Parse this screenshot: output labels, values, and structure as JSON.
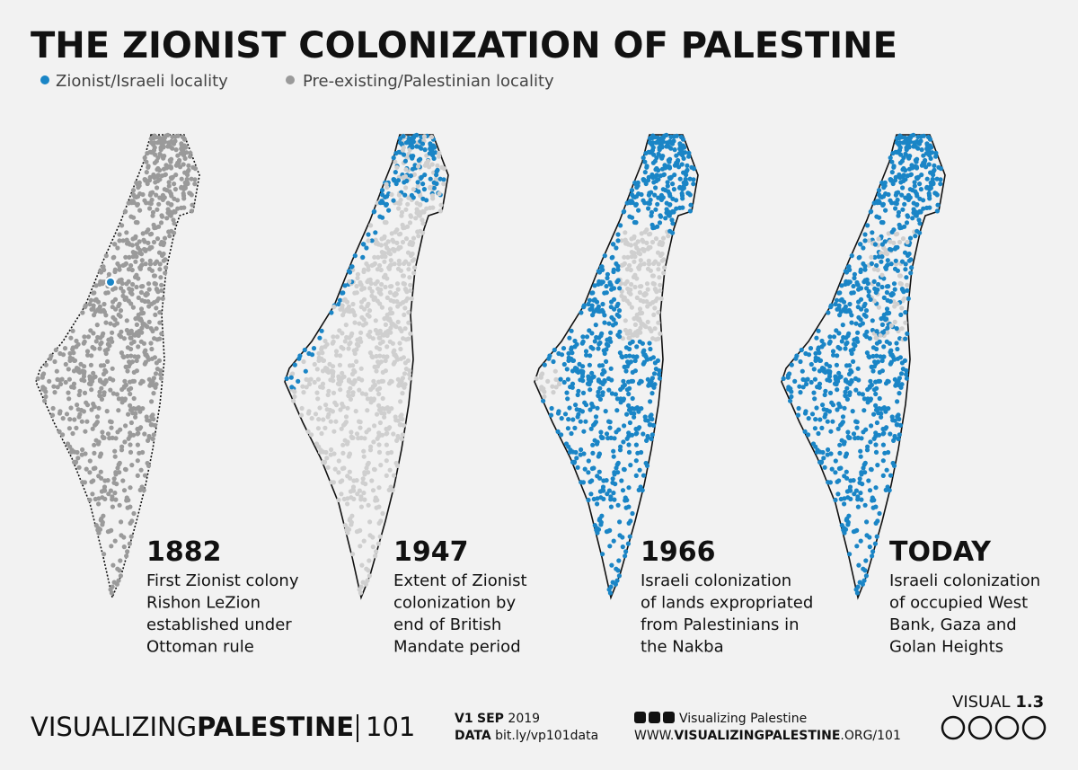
{
  "header": {
    "title": "THE ZIONIST COLONIZATION OF PALESTINE",
    "legend": [
      {
        "label": "Zionist/Israeli locality",
        "color": "#1a85c6"
      },
      {
        "label": "Pre-existing/Palestinian locality",
        "color": "#9a9a9a"
      }
    ]
  },
  "panels": [
    {
      "year": "1882",
      "lines": [
        "First Zionist colony",
        "Rishon LeZion",
        "established under",
        "Ottoman rule"
      ]
    },
    {
      "year": "1947",
      "lines": [
        "Extent of Zionist",
        "colonization by",
        "end of British",
        "Mandate period"
      ]
    },
    {
      "year": "1966",
      "lines": [
        "Israeli colonization",
        "of lands expropriated",
        "from Palestinians in",
        "the Nakba"
      ]
    },
    {
      "year": "TODAY",
      "lines": [
        "Israeli colonization",
        "of occupied West",
        "Bank, Gaza and",
        "Golan Heights"
      ]
    }
  ],
  "footer": {
    "brand_light": "VISUALIZING",
    "brand_bold": "PALESTINE",
    "series": "101",
    "version": "V1",
    "month": "SEP",
    "year": "2019",
    "data_label": "DATA",
    "data_link": "bit.ly/vp101data",
    "social": "Visualizing Palestine",
    "url_pre": "WWW.",
    "url_bold": "VISUALIZINGPALESTINE",
    "url_post": ".ORG/101",
    "visual_label": "VISUAL",
    "visual_number": "1.3"
  }
}
